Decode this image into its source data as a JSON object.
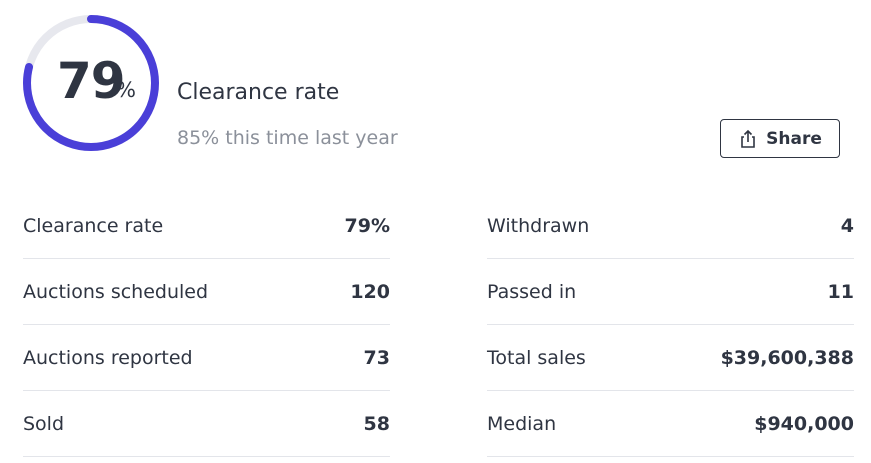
{
  "gauge": {
    "value": 79,
    "unit": "%",
    "range": [
      0,
      100
    ],
    "color": "#4a3fd8",
    "track_color": "#e7e8ee"
  },
  "header": {
    "title": "Clearance rate",
    "subtitle": "85% this time last year"
  },
  "share_button": {
    "label": "Share"
  },
  "stats": {
    "left": [
      [
        "Clearance rate",
        "79%"
      ],
      [
        "Auctions scheduled",
        120
      ],
      [
        "Auctions reported",
        73
      ],
      [
        "Sold",
        58
      ]
    ],
    "right": [
      [
        "Withdrawn",
        4
      ],
      [
        "Passed in",
        11
      ],
      [
        "Total sales",
        "$39,600,388"
      ],
      [
        "Median",
        "$940,000"
      ]
    ]
  }
}
